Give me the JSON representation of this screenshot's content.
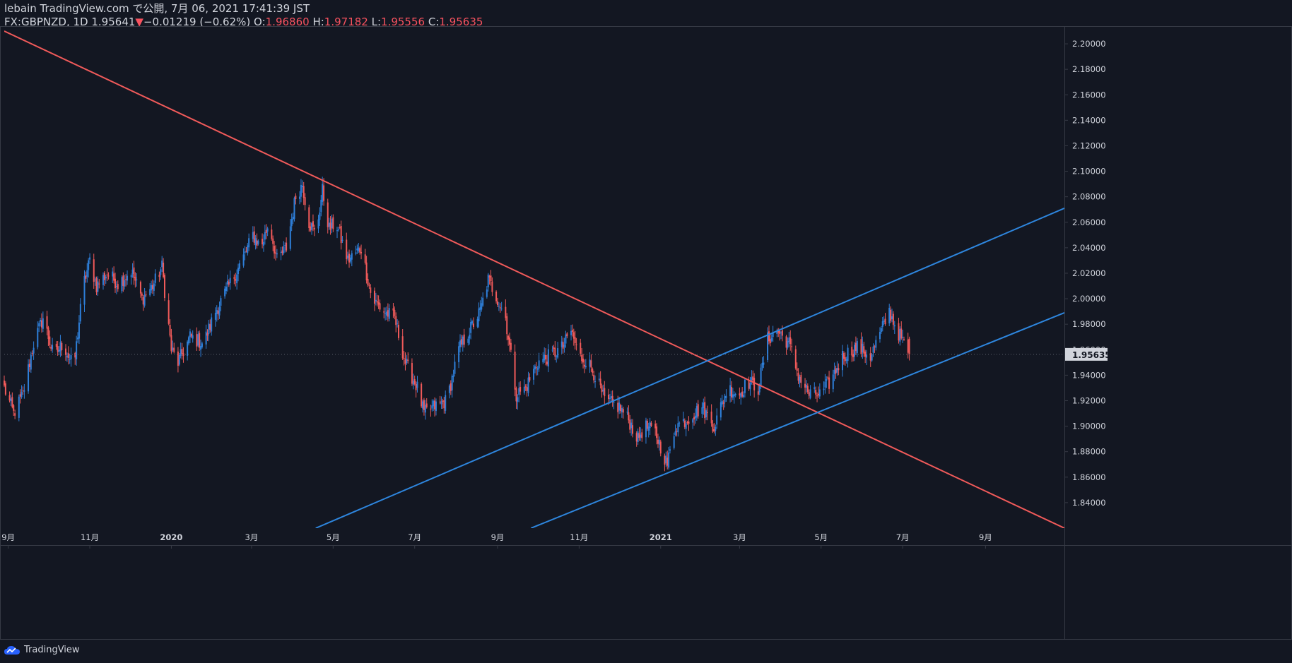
{
  "header": {
    "line1": "lebain TradingView.com で公開, 7月 06, 2021 17:41:39 JST",
    "symbol": "FX:GBPNZD, 1D",
    "last": "1.95641",
    "down_arrow": "▼",
    "change": "−0.01219 (−0.62%)",
    "o_label": "O:",
    "o_value": "1.96860",
    "h_label": "H:",
    "h_value": "1.97182",
    "l_label": "L:",
    "l_value": "1.95556",
    "c_label": "C:",
    "c_value": "1.95635"
  },
  "footer": {
    "brand": "TradingView",
    "icon": "tradingview-cloud-icon"
  },
  "colors": {
    "background": "#131722",
    "up": "#2e7fd9",
    "down": "#f05a5a",
    "trend_red": "#f05a5a",
    "trend_blue": "#2e86de",
    "axis_text": "#d1d4dc",
    "border": "#363a45"
  },
  "chart_data": {
    "type": "candlestick",
    "symbol": "FX:GBPNZD",
    "interval": "1D",
    "current_price": 1.95635,
    "y_ticks": [
      "2.20000",
      "2.18000",
      "2.16000",
      "2.14000",
      "2.12000",
      "2.10000",
      "2.08000",
      "2.06000",
      "2.04000",
      "2.02000",
      "2.00000",
      "1.98000",
      "1.96000",
      "1.94000",
      "1.92000",
      "1.90000",
      "1.88000",
      "1.86000",
      "1.84000"
    ],
    "ylim": [
      1.82,
      2.21
    ],
    "x_ticks": [
      "9月",
      "11月",
      "2020",
      "3月",
      "5月",
      "7月",
      "9月",
      "11月",
      "2021",
      "3月",
      "5月",
      "7月",
      "9月"
    ],
    "x_tick_dates": [
      "2019-09-01",
      "2019-11-01",
      "2020-01-01",
      "2020-03-01",
      "2020-05-01",
      "2020-07-01",
      "2020-09-01",
      "2020-11-01",
      "2021-01-01",
      "2021-03-01",
      "2021-05-01",
      "2021-07-01",
      "2021-09-01"
    ],
    "xlim": [
      "2019-08-29",
      "2021-10-30"
    ],
    "close_path": [
      [
        "2019-08-29",
        1.93
      ],
      [
        "2019-09-05",
        1.91
      ],
      [
        "2019-09-12",
        1.925
      ],
      [
        "2019-09-20",
        1.965
      ],
      [
        "2019-09-27",
        1.985
      ],
      [
        "2019-10-05",
        1.955
      ],
      [
        "2019-10-12",
        1.965
      ],
      [
        "2019-10-20",
        1.945
      ],
      [
        "2019-10-27",
        2.01
      ],
      [
        "2019-11-01",
        2.03
      ],
      [
        "2019-11-06",
        2.01
      ],
      [
        "2019-11-14",
        2.02
      ],
      [
        "2019-11-22",
        2.012
      ],
      [
        "2019-12-02",
        2.022
      ],
      [
        "2019-12-10",
        2.0
      ],
      [
        "2019-12-18",
        2.01
      ],
      [
        "2019-12-25",
        2.025
      ],
      [
        "2020-01-01",
        1.96
      ],
      [
        "2020-01-06",
        1.95
      ],
      [
        "2020-01-15",
        1.97
      ],
      [
        "2020-01-25",
        1.965
      ],
      [
        "2020-02-03",
        1.99
      ],
      [
        "2020-02-13",
        2.01
      ],
      [
        "2020-02-23",
        2.03
      ],
      [
        "2020-03-02",
        2.05
      ],
      [
        "2020-03-08",
        2.04
      ],
      [
        "2020-03-14",
        2.06
      ],
      [
        "2020-03-20",
        2.03
      ],
      [
        "2020-03-27",
        2.04
      ],
      [
        "2020-04-03",
        2.08
      ],
      [
        "2020-04-08",
        2.09
      ],
      [
        "2020-04-13",
        2.06
      ],
      [
        "2020-04-18",
        2.05
      ],
      [
        "2020-04-23",
        2.085
      ],
      [
        "2020-04-28",
        2.055
      ],
      [
        "2020-05-03",
        2.06
      ],
      [
        "2020-05-12",
        2.03
      ],
      [
        "2020-05-22",
        2.04
      ],
      [
        "2020-05-30",
        2.0
      ],
      [
        "2020-06-08",
        1.99
      ],
      [
        "2020-06-16",
        1.985
      ],
      [
        "2020-06-24",
        1.95
      ],
      [
        "2020-07-03",
        1.93
      ],
      [
        "2020-07-08",
        1.91
      ],
      [
        "2020-07-15",
        1.915
      ],
      [
        "2020-07-25",
        1.92
      ],
      [
        "2020-08-03",
        1.96
      ],
      [
        "2020-08-11",
        1.975
      ],
      [
        "2020-08-19",
        1.99
      ],
      [
        "2020-08-25",
        2.015
      ],
      [
        "2020-09-01",
        2.0
      ],
      [
        "2020-09-07",
        1.985
      ],
      [
        "2020-09-15",
        1.925
      ],
      [
        "2020-09-22",
        1.93
      ],
      [
        "2020-10-01",
        1.95
      ],
      [
        "2020-10-10",
        1.955
      ],
      [
        "2020-10-20",
        1.962
      ],
      [
        "2020-10-26",
        1.975
      ],
      [
        "2020-11-01",
        1.955
      ],
      [
        "2020-11-08",
        1.95
      ],
      [
        "2020-11-13",
        1.94
      ],
      [
        "2020-11-20",
        1.92
      ],
      [
        "2020-12-01",
        1.915
      ],
      [
        "2020-12-08",
        1.905
      ],
      [
        "2020-12-15",
        1.89
      ],
      [
        "2020-12-20",
        1.9
      ],
      [
        "2020-12-28",
        1.895
      ],
      [
        "2021-01-06",
        1.87
      ],
      [
        "2021-01-12",
        1.9
      ],
      [
        "2021-01-20",
        1.905
      ],
      [
        "2021-02-01",
        1.915
      ],
      [
        "2021-02-10",
        1.9
      ],
      [
        "2021-02-20",
        1.93
      ],
      [
        "2021-03-01",
        1.925
      ],
      [
        "2021-03-07",
        1.935
      ],
      [
        "2021-03-15",
        1.93
      ],
      [
        "2021-03-22",
        1.968
      ],
      [
        "2021-03-29",
        1.975
      ],
      [
        "2021-04-07",
        1.965
      ],
      [
        "2021-04-14",
        1.94
      ],
      [
        "2021-04-22",
        1.925
      ],
      [
        "2021-04-30",
        1.925
      ],
      [
        "2021-05-08",
        1.935
      ],
      [
        "2021-05-17",
        1.955
      ],
      [
        "2021-05-28",
        1.962
      ],
      [
        "2021-06-07",
        1.955
      ],
      [
        "2021-06-14",
        1.972
      ],
      [
        "2021-06-21",
        1.99
      ],
      [
        "2021-06-27",
        1.975
      ],
      [
        "2021-07-06",
        1.956
      ]
    ],
    "trendlines": [
      {
        "color": "red",
        "from": [
          "2019-08-29",
          2.21
        ],
        "to": [
          "2021-10-30",
          1.82
        ]
      },
      {
        "color": "blue",
        "from": [
          "2020-04-18",
          1.82
        ],
        "to": [
          "2021-10-30",
          2.071
        ]
      },
      {
        "color": "blue",
        "from": [
          "2020-09-26",
          1.82
        ],
        "to": [
          "2021-10-30",
          1.989
        ]
      }
    ]
  }
}
